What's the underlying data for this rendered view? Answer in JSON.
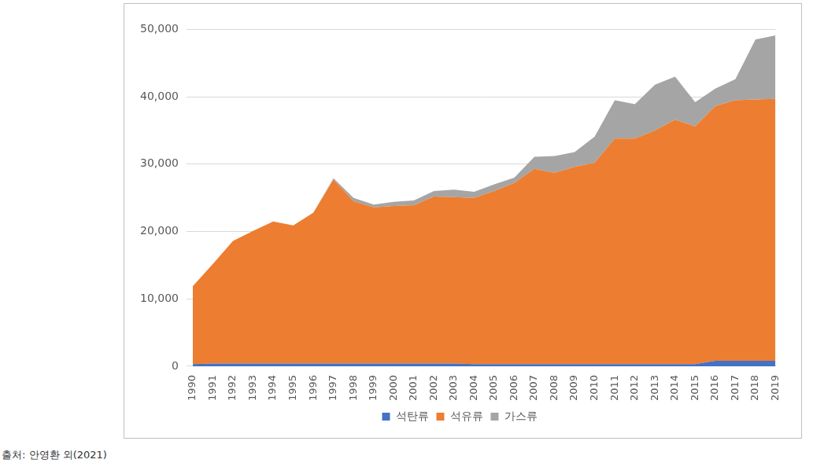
{
  "chart_data": {
    "type": "area",
    "stacked": true,
    "grid": true,
    "legend": "bottom",
    "source": "출처: 안영환 외(2021)",
    "categories": [
      "1990",
      "1991",
      "1992",
      "1993",
      "1994",
      "1995",
      "1996",
      "1997",
      "1998",
      "1999",
      "2000",
      "2001",
      "2002",
      "2003",
      "2004",
      "2005",
      "2006",
      "2007",
      "2008",
      "2009",
      "2010",
      "2011",
      "2012",
      "2013",
      "2014",
      "2015",
      "2016",
      "2017",
      "2018",
      "2019"
    ],
    "ylim": [
      0,
      50000
    ],
    "yticks": [
      0,
      {
        "value": 10000,
        "label": "10,000"
      },
      {
        "value": 20000,
        "label": "20,000"
      },
      {
        "value": 30000,
        "label": "30,000"
      },
      {
        "value": 40000,
        "label": "40,000"
      },
      {
        "value": 50000,
        "label": "50,000"
      }
    ],
    "series": [
      {
        "name": "석탄류",
        "color": "#4472c4",
        "values": [
          300,
          400,
          400,
          400,
          400,
          400,
          400,
          400,
          400,
          400,
          400,
          400,
          400,
          400,
          300,
          300,
          300,
          300,
          300,
          300,
          300,
          300,
          300,
          300,
          300,
          300,
          800,
          800,
          800,
          800
        ]
      },
      {
        "name": "석유류",
        "color": "#ed7d31",
        "values": [
          11600,
          14800,
          18200,
          19700,
          21100,
          20500,
          22400,
          27300,
          24100,
          23200,
          23400,
          23500,
          24800,
          24700,
          24700,
          25700,
          26900,
          29000,
          28400,
          29300,
          29900,
          33500,
          33500,
          34700,
          36300,
          35300,
          37800,
          38700,
          38800,
          38900
        ]
      },
      {
        "name": "가스류",
        "color": "#a5a5a5",
        "values": [
          0,
          0,
          0,
          0,
          0,
          0,
          0,
          200,
          500,
          400,
          600,
          700,
          800,
          1100,
          900,
          1000,
          800,
          1800,
          2500,
          2200,
          3900,
          5700,
          5100,
          6800,
          6400,
          3600,
          2600,
          3100,
          8900,
          9400
        ]
      }
    ]
  }
}
